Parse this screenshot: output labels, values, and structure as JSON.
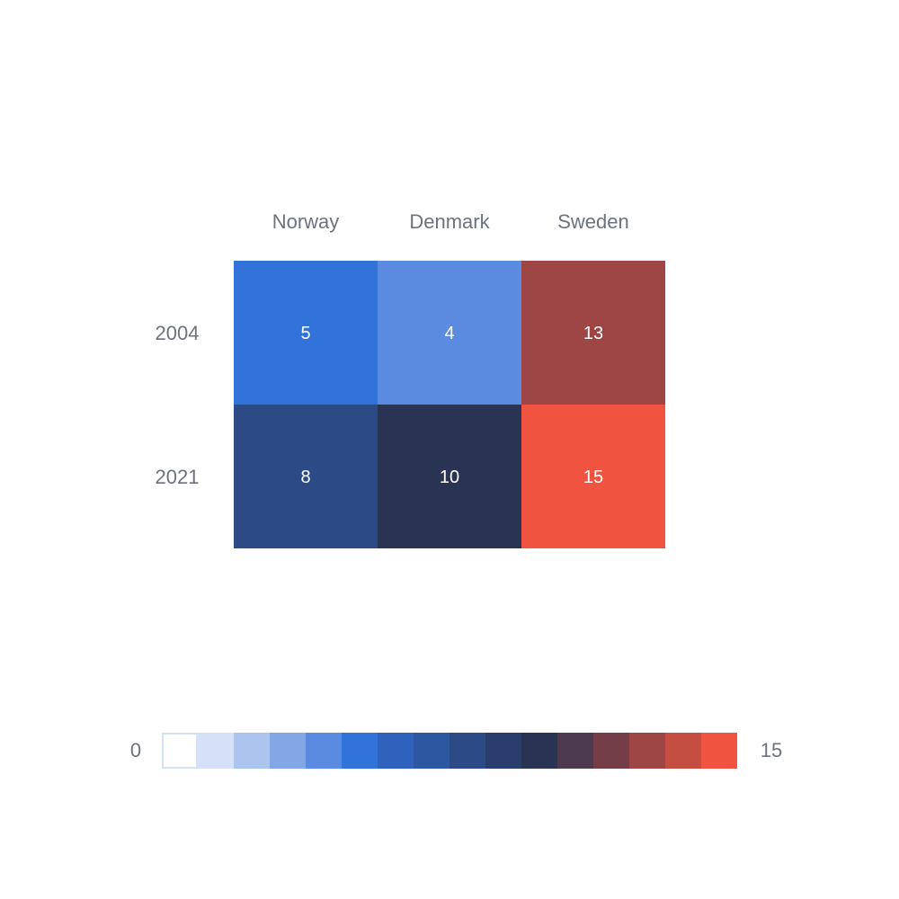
{
  "chart_data": {
    "type": "heatmap",
    "columns": [
      "Norway",
      "Denmark",
      "Sweden"
    ],
    "rows": [
      "2004",
      "2021"
    ],
    "values": [
      [
        5,
        4,
        13
      ],
      [
        8,
        10,
        15
      ]
    ],
    "title": "",
    "xlabel": "",
    "ylabel": "",
    "legend": {
      "min_label": "0",
      "max_label": "15",
      "placement": "bottom",
      "min": 0,
      "max": 15,
      "steps": [
        "#ffffff",
        "#d5e1f6",
        "#acc4ee",
        "#83a7e5",
        "#5a8be0",
        "#3173d8",
        "#2e62bd",
        "#2c57a1",
        "#2b4a86",
        "#2a3e6d",
        "#293353",
        "#4d3a4f",
        "#743e49",
        "#9d4645",
        "#c54e43",
        "#f05440"
      ]
    },
    "colors": {
      "label_text": "#6b7280",
      "cell_text": "#ffffff",
      "legend_border": "#d5e1f6"
    }
  }
}
